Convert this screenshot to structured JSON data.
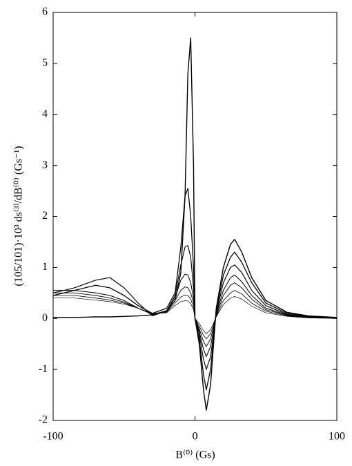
{
  "chart_data": {
    "type": "line",
    "x_label": "B⁽⁰⁾ (Gs)",
    "y_label": "(105/101)·10³ ds⁽³⁾/dB⁽⁰⁾ (Gs⁻¹)",
    "x": [
      -100,
      -85,
      -70,
      -60,
      -50,
      -40,
      -30,
      -20,
      -14,
      -10,
      -7,
      -5,
      -3,
      -1,
      0,
      3,
      6,
      8,
      11,
      15,
      20,
      25,
      28,
      33,
      40,
      50,
      65,
      80,
      100
    ],
    "series": [
      {
        "color": "#000000",
        "values": [
          0.02,
          0.02,
          0.03,
          0.03,
          0.04,
          0.05,
          0.07,
          0.15,
          0.35,
          0.9,
          2.4,
          4.8,
          5.5,
          3.0,
          0.0,
          -0.5,
          -1.4,
          -1.8,
          -1.3,
          0.2,
          1.0,
          1.45,
          1.55,
          1.3,
          0.8,
          0.35,
          0.12,
          0.05,
          0.02
        ]
      },
      {
        "color": "#000000",
        "values": [
          0.45,
          0.55,
          0.65,
          0.6,
          0.45,
          0.25,
          0.1,
          0.2,
          0.5,
          1.4,
          2.4,
          2.55,
          2.0,
          1.0,
          0.0,
          -0.4,
          -1.1,
          -1.4,
          -1.0,
          0.15,
          0.85,
          1.2,
          1.3,
          1.1,
          0.7,
          0.3,
          0.1,
          0.04,
          0.01
        ]
      },
      {
        "color": "#000000",
        "values": [
          0.5,
          0.6,
          0.75,
          0.8,
          0.6,
          0.3,
          0.05,
          0.15,
          0.45,
          1.05,
          1.4,
          1.43,
          1.2,
          0.6,
          0.0,
          -0.3,
          -0.8,
          -1.0,
          -0.75,
          0.1,
          0.7,
          1.0,
          1.05,
          0.9,
          0.55,
          0.25,
          0.08,
          0.03,
          0.01
        ]
      },
      {
        "color": "#000000",
        "values": [
          0.55,
          0.55,
          0.5,
          0.45,
          0.35,
          0.2,
          0.08,
          0.15,
          0.4,
          0.75,
          0.87,
          0.85,
          0.7,
          0.4,
          0.0,
          -0.25,
          -0.6,
          -0.75,
          -0.55,
          0.08,
          0.55,
          0.8,
          0.85,
          0.72,
          0.45,
          0.2,
          0.07,
          0.02,
          0.01
        ]
      },
      {
        "color": "#000000",
        "values": [
          0.5,
          0.5,
          0.45,
          0.4,
          0.32,
          0.2,
          0.08,
          0.13,
          0.35,
          0.55,
          0.62,
          0.6,
          0.5,
          0.3,
          0.0,
          -0.2,
          -0.45,
          -0.55,
          -0.4,
          0.05,
          0.45,
          0.65,
          0.7,
          0.6,
          0.38,
          0.17,
          0.06,
          0.02,
          0.01
        ]
      },
      {
        "color": "#000000",
        "values": [
          0.45,
          0.45,
          0.4,
          0.36,
          0.3,
          0.2,
          0.09,
          0.12,
          0.3,
          0.42,
          0.46,
          0.45,
          0.38,
          0.22,
          0.0,
          -0.15,
          -0.33,
          -0.4,
          -0.3,
          0.04,
          0.35,
          0.5,
          0.55,
          0.48,
          0.3,
          0.14,
          0.05,
          0.02,
          0.01
        ]
      },
      {
        "color": "#000000",
        "values": [
          0.4,
          0.4,
          0.36,
          0.33,
          0.28,
          0.2,
          0.1,
          0.11,
          0.25,
          0.33,
          0.35,
          0.34,
          0.29,
          0.17,
          0.0,
          -0.1,
          -0.24,
          -0.3,
          -0.22,
          0.03,
          0.27,
          0.4,
          0.43,
          0.38,
          0.24,
          0.11,
          0.04,
          0.01,
          0.0
        ]
      }
    ],
    "xlim": [
      -100,
      100
    ],
    "xticks": [
      -100,
      0,
      100
    ],
    "ylim": [
      -2,
      6
    ],
    "yticks": [
      -2,
      -1,
      0,
      1,
      2,
      3,
      4,
      5,
      6
    ]
  }
}
